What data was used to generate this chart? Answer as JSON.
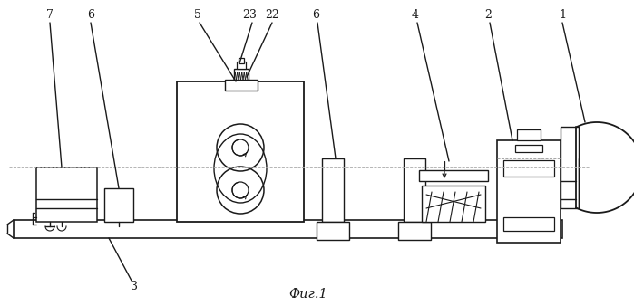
{
  "fig_label": "Фиг.1",
  "bg_color": "#ffffff",
  "line_color": "#1a1a1a",
  "lw": 1.0,
  "figsize": [
    6.99,
    3.38
  ],
  "dpi": 100
}
